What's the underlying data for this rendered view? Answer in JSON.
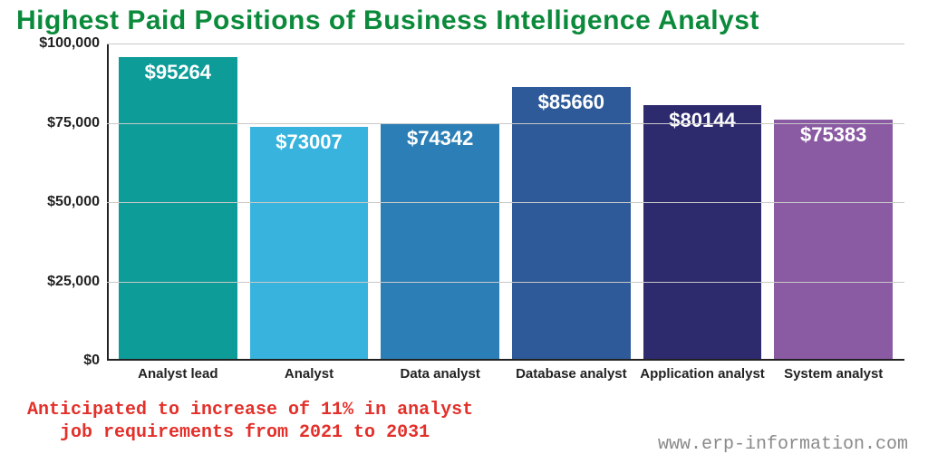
{
  "title": "Highest Paid Positions of Business Intelligence Analyst",
  "title_color": "#0a8a3a",
  "title_fontsize": 30,
  "chart": {
    "type": "bar",
    "ylim": [
      0,
      100000
    ],
    "ytick_step": 25000,
    "ytick_labels": [
      "$0",
      "$25,000",
      "$50,000",
      "$75,000",
      "$100,000"
    ],
    "ytick_values": [
      0,
      25000,
      50000,
      75000,
      100000
    ],
    "axis_color": "#222222",
    "grid_color": "#c9c9c9",
    "background_color": "#ffffff",
    "value_label_color": "#ffffff",
    "value_label_fontsize": 22,
    "x_label_fontsize": 15,
    "y_label_fontsize": 16,
    "bar_width_ratio": 0.9,
    "bars": [
      {
        "label": "Analyst lead",
        "value": 95264,
        "value_text": "$95264",
        "color": "#0e9c99"
      },
      {
        "label": "Analyst",
        "value": 73007,
        "value_text": "$73007",
        "color": "#38b3dd"
      },
      {
        "label": "Data analyst",
        "value": 74342,
        "value_text": "$74342",
        "color": "#2c7fb6"
      },
      {
        "label": "Database analyst",
        "value": 85660,
        "value_text": "$85660",
        "color": "#2e5a99"
      },
      {
        "label": "Application analyst",
        "value": 80144,
        "value_text": "$80144",
        "color": "#2d2a6e"
      },
      {
        "label": "System analyst",
        "value": 75383,
        "value_text": "$75383",
        "color": "#8a5aa3"
      }
    ]
  },
  "footnote": {
    "line1": "Anticipated to increase of 11% in analyst",
    "line2": "   job requirements from 2021 to 2031",
    "color": "#e3302a",
    "fontsize": 20,
    "font_family": "monospace"
  },
  "source": {
    "text": "www.erp-information.com",
    "color": "#8a8a8a",
    "fontsize": 20,
    "font_family": "monospace"
  }
}
